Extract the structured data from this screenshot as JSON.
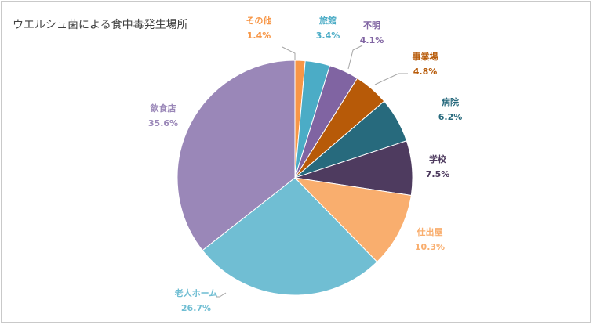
{
  "chart_data": {
    "type": "pie",
    "title": "ウエルシュ菌による食中毒発生場所",
    "start": "12 o'clock",
    "direction": "clockwise",
    "slices": [
      {
        "label": "その他",
        "value": 1.4,
        "value_label": "1.4%",
        "color": "#F79646"
      },
      {
        "label": "旅館",
        "value": 3.4,
        "value_label": "3.4%",
        "color": "#4BACC6"
      },
      {
        "label": "不明",
        "value": 4.1,
        "value_label": "4.1%",
        "color": "#8064A2"
      },
      {
        "label": "事業場",
        "value": 4.8,
        "value_label": "4.8%",
        "color": "#B75A08"
      },
      {
        "label": "病院",
        "value": 6.2,
        "value_label": "6.2%",
        "color": "#276A7D"
      },
      {
        "label": "学校",
        "value": 7.5,
        "value_label": "7.5%",
        "color": "#4E3B5F"
      },
      {
        "label": "仕出屋",
        "value": 10.3,
        "value_label": "10.3%",
        "color": "#F9AE6E"
      },
      {
        "label": "老人ホーム",
        "value": 26.7,
        "value_label": "26.7%",
        "color": "#70BED3"
      },
      {
        "label": "飲食店",
        "value": 35.6,
        "value_label": "35.6%",
        "color": "#9A87B8"
      }
    ]
  }
}
